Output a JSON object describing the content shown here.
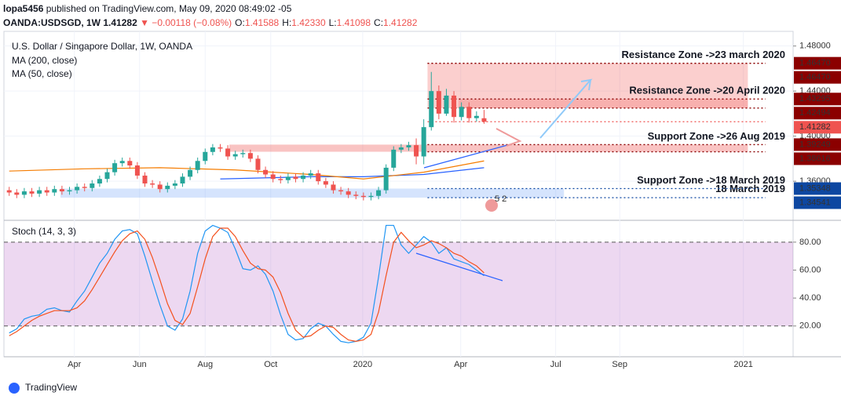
{
  "header": {
    "author": "lopa5456",
    "published": "published on TradingView.com, May 09, 2020 08:49:02 -05"
  },
  "quote": {
    "symbol": "OANDA:USDSGD, 1W",
    "last": "1.41282",
    "change": "▼ −0.00118 (−0.08%)",
    "items": [
      {
        "label": "O:",
        "value": "1.41588"
      },
      {
        "label": "H:",
        "value": "1.42330"
      },
      {
        "label": "L:",
        "value": "1.41098"
      },
      {
        "label": "C:",
        "value": "1.41282"
      }
    ]
  },
  "footer": "TradingView",
  "badge": "5 2",
  "chart_data": [
    {
      "type": "candlestick",
      "title": "U.S. Dollar / Singapore Dollar, 1W, OANDA",
      "up_color": "#26a69a",
      "down_color": "#ef5350",
      "open": [
        1.352,
        1.35,
        1.348,
        1.351,
        1.349,
        1.352,
        1.35,
        1.353,
        1.351,
        1.352,
        1.355,
        1.354,
        1.358,
        1.362,
        1.368,
        1.376,
        1.378,
        1.374,
        1.365,
        1.358,
        1.357,
        1.353,
        1.356,
        1.358,
        1.364,
        1.37,
        1.378,
        1.386,
        1.39,
        1.389,
        1.382,
        1.384,
        1.385,
        1.38,
        1.37,
        1.366,
        1.362,
        1.361,
        1.364,
        1.362,
        1.365,
        1.367,
        1.36,
        1.357,
        1.352,
        1.351,
        1.348,
        1.347,
        1.346,
        1.347,
        1.352,
        1.372,
        1.388,
        1.39,
        1.392,
        1.382,
        1.408,
        1.44,
        1.42,
        1.436,
        1.417,
        1.426,
        1.416,
        1.41588
      ],
      "high": [
        1.355,
        1.353,
        1.354,
        1.354,
        1.355,
        1.355,
        1.356,
        1.356,
        1.355,
        1.358,
        1.358,
        1.361,
        1.365,
        1.371,
        1.379,
        1.381,
        1.381,
        1.377,
        1.368,
        1.361,
        1.36,
        1.359,
        1.361,
        1.367,
        1.373,
        1.381,
        1.389,
        1.393,
        1.393,
        1.392,
        1.387,
        1.388,
        1.388,
        1.383,
        1.373,
        1.369,
        1.365,
        1.367,
        1.367,
        1.368,
        1.37,
        1.37,
        1.363,
        1.36,
        1.355,
        1.354,
        1.351,
        1.35,
        1.35,
        1.355,
        1.375,
        1.391,
        1.393,
        1.395,
        1.398,
        1.415,
        1.457,
        1.445,
        1.442,
        1.44,
        1.43,
        1.43,
        1.422,
        1.4233
      ],
      "low": [
        1.347,
        1.345,
        1.345,
        1.346,
        1.346,
        1.347,
        1.347,
        1.348,
        1.348,
        1.349,
        1.351,
        1.351,
        1.355,
        1.359,
        1.365,
        1.373,
        1.371,
        1.362,
        1.355,
        1.354,
        1.35,
        1.35,
        1.353,
        1.355,
        1.361,
        1.367,
        1.375,
        1.383,
        1.386,
        1.379,
        1.379,
        1.381,
        1.377,
        1.367,
        1.363,
        1.359,
        1.358,
        1.358,
        1.359,
        1.359,
        1.362,
        1.357,
        1.354,
        1.349,
        1.348,
        1.345,
        1.344,
        1.343,
        1.343,
        1.344,
        1.349,
        1.369,
        1.385,
        1.387,
        1.375,
        1.375,
        1.405,
        1.415,
        1.418,
        1.412,
        1.414,
        1.412,
        1.413,
        1.41098
      ],
      "close": [
        1.35,
        1.348,
        1.351,
        1.349,
        1.352,
        1.35,
        1.353,
        1.351,
        1.352,
        1.355,
        1.354,
        1.358,
        1.362,
        1.368,
        1.376,
        1.378,
        1.374,
        1.365,
        1.358,
        1.357,
        1.353,
        1.356,
        1.358,
        1.364,
        1.37,
        1.378,
        1.386,
        1.39,
        1.389,
        1.382,
        1.384,
        1.385,
        1.38,
        1.37,
        1.366,
        1.362,
        1.361,
        1.364,
        1.362,
        1.365,
        1.367,
        1.36,
        1.357,
        1.352,
        1.351,
        1.348,
        1.347,
        1.346,
        1.347,
        1.352,
        1.372,
        1.388,
        1.39,
        1.392,
        1.382,
        1.408,
        1.44,
        1.42,
        1.436,
        1.417,
        1.426,
        1.416,
        1.418,
        1.41282
      ],
      "lines": [
        {
          "name": "MA (200, close)",
          "color": "#2962ff",
          "x": [
            28,
            40,
            47,
            55,
            63
          ],
          "values": [
            1.362,
            1.364,
            1.364,
            1.366,
            1.372
          ]
        },
        {
          "name": "MA (50, close)",
          "color": "#f57c00",
          "x": [
            0,
            10,
            20,
            30,
            40,
            47,
            55,
            63
          ],
          "values": [
            1.369,
            1.371,
            1.372,
            1.37,
            1.366,
            1.362,
            1.368,
            1.378
          ]
        }
      ],
      "zones": [
        {
          "names": [
            "Resistance Zone ->23 march 2020"
          ],
          "top": 1.4647,
          "bottom": 1.42494,
          "start": 55.5,
          "end": 98,
          "fill": "rgba(239,83,80,0.28)",
          "color": "#b71c1c"
        },
        {
          "names": [
            "Resistance Zone ->20 April 2020"
          ],
          "top": 1.43295,
          "bottom": 1.42494,
          "start": 59.6,
          "end": 98,
          "fill": "rgba(239,83,80,0.25)",
          "color": "#b71c1c"
        },
        {
          "names": [
            "Support Zone ->26 Aug 2019"
          ],
          "top": 1.39249,
          "bottom": 1.38616,
          "start": 29.2,
          "end": 98,
          "fill": "rgba(239,83,80,0.35)",
          "color": "#0d47a1"
        },
        {
          "names": [
            "Support Zone ->18 March 2019",
            "18 March 2019"
          ],
          "top": 1.35348,
          "bottom": 1.34541,
          "start": 6.8,
          "end": 73.6,
          "fill": "rgba(66,133,244,0.22)",
          "color": "#0d47a1"
        }
      ],
      "levels": [
        {
          "value": 1.4647,
          "label": "1.46470",
          "color": "#8b0000"
        },
        {
          "value": 1.4647,
          "label": "1.46470",
          "color": "#8b0000"
        },
        {
          "value": 1.43295,
          "label": "1.43295",
          "color": "#8b0000"
        },
        {
          "value": 1.42494,
          "label": "1.42494",
          "color": "#8b0000"
        },
        {
          "value": 1.41282,
          "label": "1.41282",
          "color": "#ef5350"
        },
        {
          "value": 1.39249,
          "label": "1.39249",
          "color": "#8b0000"
        },
        {
          "value": 1.38616,
          "label": "1.38616",
          "color": "#8b0000"
        },
        {
          "value": 1.35348,
          "label": "1.35348",
          "color": "#0d47a1"
        },
        {
          "value": 1.34541,
          "label": "1.34541",
          "color": "#0d47a1"
        }
      ],
      "xlim": [
        -0.7,
        104
      ],
      "xticks": [
        {
          "value": 8.65,
          "label": "Apr"
        },
        {
          "value": 17.3,
          "label": "Jun"
        },
        {
          "value": 26.0,
          "label": "Aug"
        },
        {
          "value": 34.7,
          "label": "Oct"
        },
        {
          "value": 46.9,
          "label": "2020"
        },
        {
          "value": 59.9,
          "label": "Apr"
        },
        {
          "value": 72.5,
          "label": "Jul"
        },
        {
          "value": 81.0,
          "label": "Sep"
        },
        {
          "value": 97.4,
          "label": "2021"
        }
      ],
      "ylim": [
        1.326,
        1.493
      ],
      "yticks": [
        {
          "value": 1.48,
          "label": "1.48000"
        },
        {
          "value": 1.44,
          "label": "1.44000"
        },
        {
          "value": 1.4,
          "label": "1.40000"
        },
        {
          "value": 1.36,
          "label": "1.36000"
        }
      ]
    },
    {
      "type": "line",
      "title": "Stoch (14, 3, 3)",
      "series": [
        {
          "color": "#2196f3",
          "values": [
            15,
            18,
            25,
            27,
            28,
            32,
            33,
            31,
            30,
            38,
            45,
            55,
            65,
            72,
            82,
            88,
            89,
            86,
            70,
            52,
            35,
            20,
            17,
            25,
            45,
            72,
            88,
            92,
            90,
            87,
            75,
            61,
            60,
            63,
            57,
            45,
            28,
            14,
            10,
            11,
            18,
            22,
            20,
            14,
            9,
            8,
            9,
            12,
            22,
            55,
            92,
            92,
            78,
            72,
            78,
            84,
            80,
            72,
            76,
            68,
            66,
            64,
            60,
            56
          ]
        },
        {
          "color": "#f4511e",
          "values": [
            13,
            16,
            20,
            24,
            27,
            29,
            31,
            31,
            31,
            33,
            38,
            46,
            55,
            64,
            73,
            81,
            86,
            88,
            82,
            69,
            53,
            36,
            24,
            21,
            29,
            48,
            68,
            84,
            90,
            90,
            84,
            74,
            65,
            61,
            60,
            55,
            44,
            29,
            17,
            12,
            13,
            17,
            20,
            19,
            14,
            10,
            9,
            10,
            14,
            30,
            56,
            80,
            87,
            81,
            76,
            78,
            81,
            79,
            76,
            72,
            70,
            66,
            63,
            58
          ]
        }
      ],
      "band": [
        20,
        80
      ],
      "ylim": [
        -2,
        94.5
      ],
      "yticks": [
        {
          "value": 20,
          "label": "20.00"
        },
        {
          "value": 40,
          "label": "40.00"
        },
        {
          "value": 60,
          "label": "60.00"
        },
        {
          "value": 80,
          "label": "80.00"
        }
      ]
    }
  ]
}
